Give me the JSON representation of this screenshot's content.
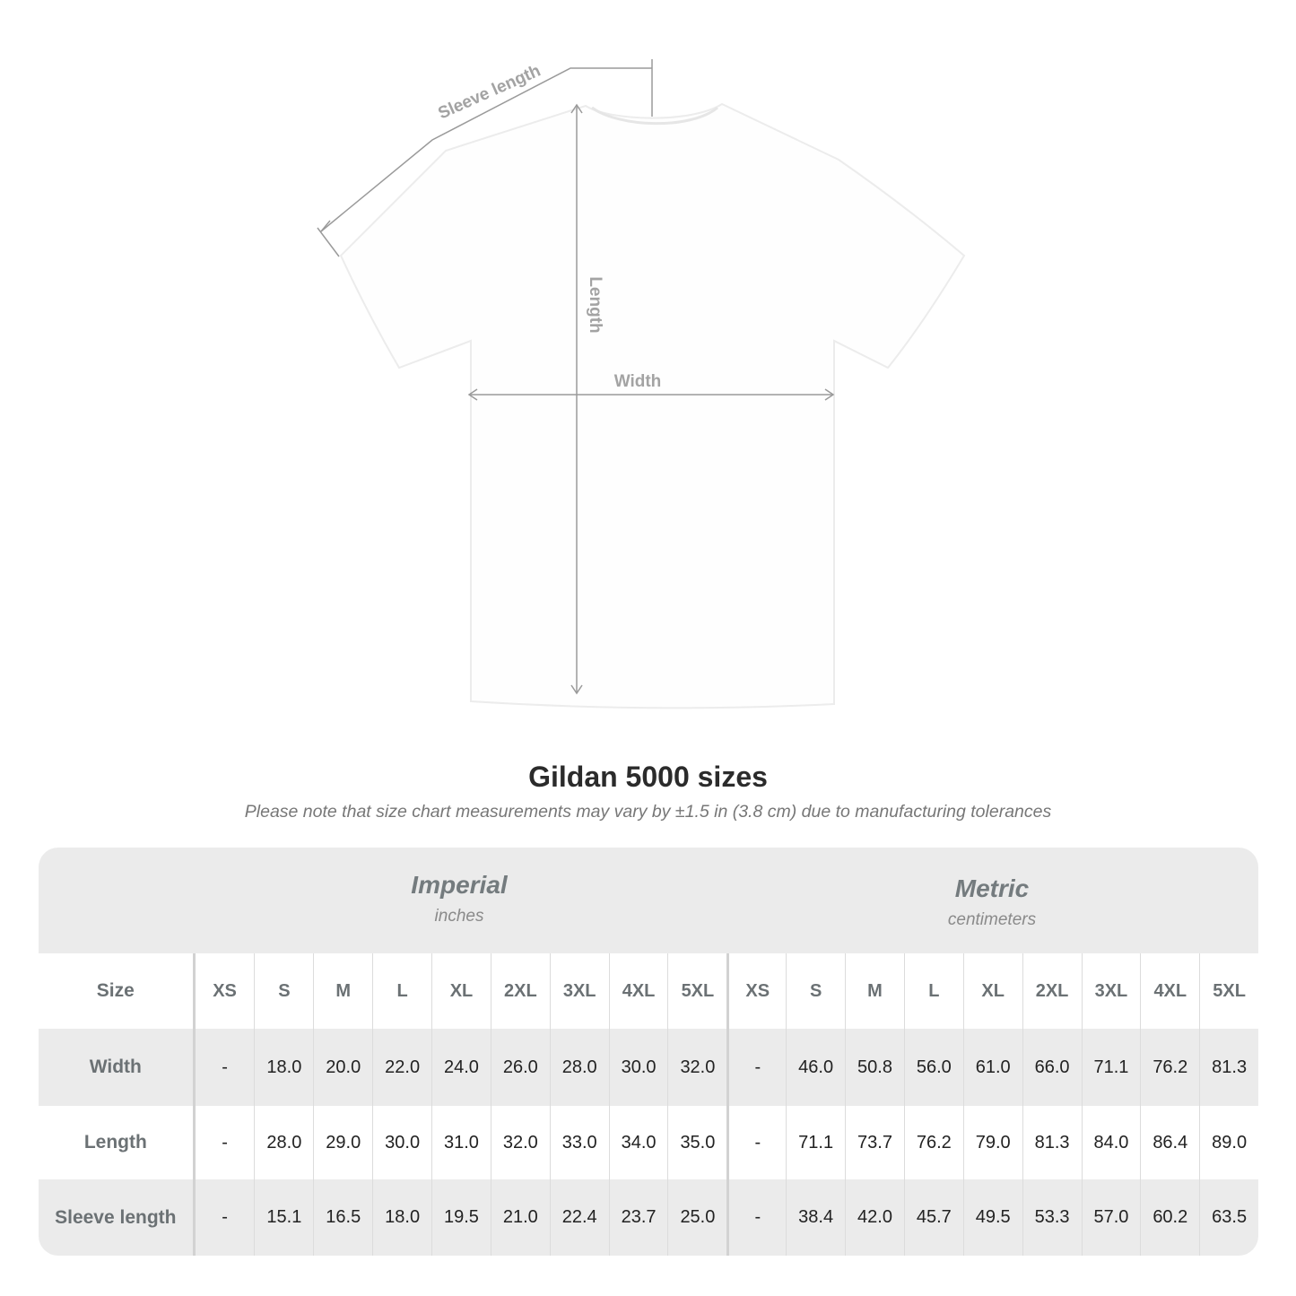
{
  "diagram": {
    "labels": {
      "sleeve": "Sleeve length",
      "length": "Length",
      "width": "Width"
    }
  },
  "title": "Gildan 5000 sizes",
  "subtitle": "Please note that size chart measurements may vary by ±1.5 in (3.8 cm) due to manufacturing tolerances",
  "table": {
    "imperial": {
      "name": "Imperial",
      "unit": "inches"
    },
    "metric": {
      "name": "Metric",
      "unit": "centimeters"
    },
    "size_label": "Size",
    "sizes": [
      "XS",
      "S",
      "M",
      "L",
      "XL",
      "2XL",
      "3XL",
      "4XL",
      "5XL"
    ],
    "rows": [
      {
        "label": "Width",
        "imperial": [
          "-",
          "18.0",
          "20.0",
          "22.0",
          "24.0",
          "26.0",
          "28.0",
          "30.0",
          "32.0"
        ],
        "metric": [
          "-",
          "46.0",
          "50.8",
          "56.0",
          "61.0",
          "66.0",
          "71.1",
          "76.2",
          "81.3"
        ]
      },
      {
        "label": "Length",
        "imperial": [
          "-",
          "28.0",
          "29.0",
          "30.0",
          "31.0",
          "32.0",
          "33.0",
          "34.0",
          "35.0"
        ],
        "metric": [
          "-",
          "71.1",
          "73.7",
          "76.2",
          "79.0",
          "81.3",
          "84.0",
          "86.4",
          "89.0"
        ]
      },
      {
        "label": "Sleeve length",
        "imperial": [
          "-",
          "15.1",
          "16.5",
          "18.0",
          "19.5",
          "21.0",
          "22.4",
          "23.7",
          "25.0"
        ],
        "metric": [
          "-",
          "38.4",
          "42.0",
          "45.7",
          "49.5",
          "53.3",
          "57.0",
          "60.2",
          "63.5"
        ]
      }
    ]
  }
}
